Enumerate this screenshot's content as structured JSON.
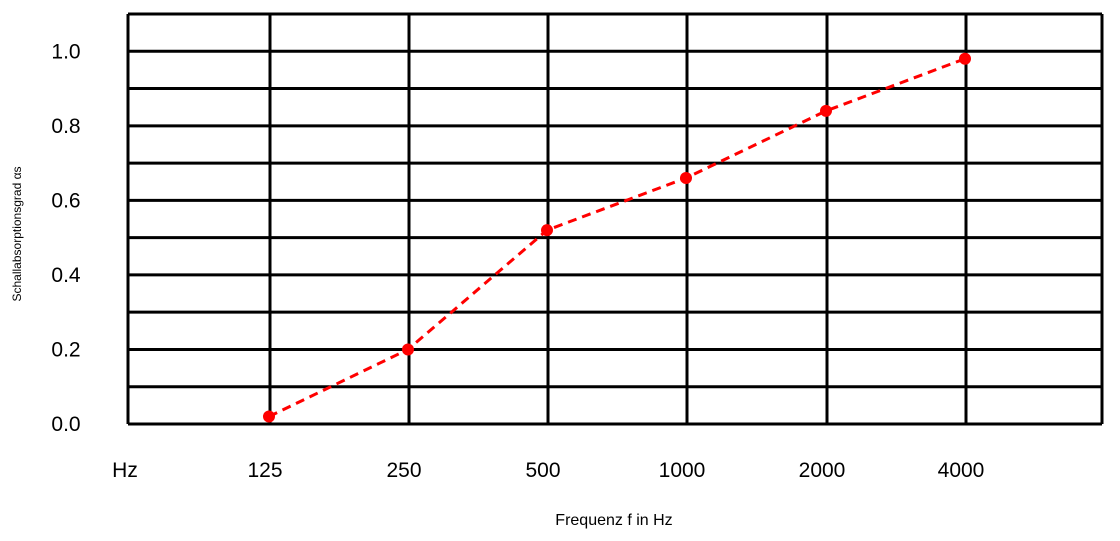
{
  "chart_data": {
    "type": "line",
    "title": "",
    "xlabel": "Frequenz f in Hz",
    "ylabel": "Schallabsorptionsgrad  αs",
    "x_unit_label": "Hz",
    "categories": [
      "125",
      "250",
      "500",
      "1000",
      "2000",
      "4000"
    ],
    "series": [
      {
        "values": [
          0.02,
          0.2,
          0.52,
          0.66,
          0.84,
          0.98
        ],
        "color": "#ff0000",
        "style": "dashed",
        "marker": "circle"
      }
    ],
    "ylim": [
      0.0,
      1.1
    ],
    "yticks": [
      "0.0",
      "0.2",
      "0.4",
      "0.6",
      "0.8",
      "1.0"
    ],
    "grid": true
  }
}
